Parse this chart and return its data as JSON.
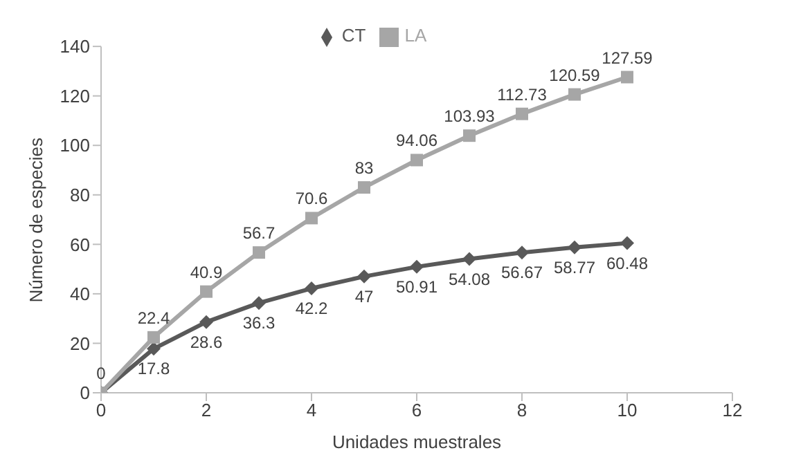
{
  "chart_data": {
    "type": "line",
    "xlabel": "Unidades muestrales",
    "ylabel": "Número de especies",
    "x": [
      0,
      1,
      2,
      3,
      4,
      5,
      6,
      7,
      8,
      9,
      10
    ],
    "series": [
      {
        "name": "CT",
        "color": "#595959",
        "marker": "diamond",
        "values": [
          0,
          17.8,
          28.6,
          36.3,
          42.2,
          47,
          50.91,
          54.08,
          56.67,
          58.77,
          60.48
        ],
        "value_labels": [
          null,
          "17.8",
          "28.6",
          "36.3",
          "42.2",
          "47",
          "50.91",
          "54.08",
          "56.67",
          "58.77",
          "60.48"
        ]
      },
      {
        "name": "LA",
        "color": "#a6a6a6",
        "marker": "square",
        "values": [
          0,
          22.4,
          40.9,
          56.7,
          70.6,
          83,
          94.06,
          103.93,
          112.73,
          120.59,
          127.59
        ],
        "value_labels": [
          "0",
          "22.4",
          "40.9",
          "56.7",
          "70.6",
          "83",
          "94.06",
          "103.93",
          "112.73",
          "120.59",
          "127.59"
        ]
      }
    ],
    "xlim": [
      0,
      12
    ],
    "xticks": [
      0,
      2,
      4,
      6,
      8,
      10,
      12
    ],
    "ylim": [
      0,
      140
    ],
    "yticks": [
      0,
      20,
      40,
      60,
      80,
      100,
      120,
      140
    ],
    "grid": false,
    "legend": "top",
    "line_style": "solid"
  }
}
